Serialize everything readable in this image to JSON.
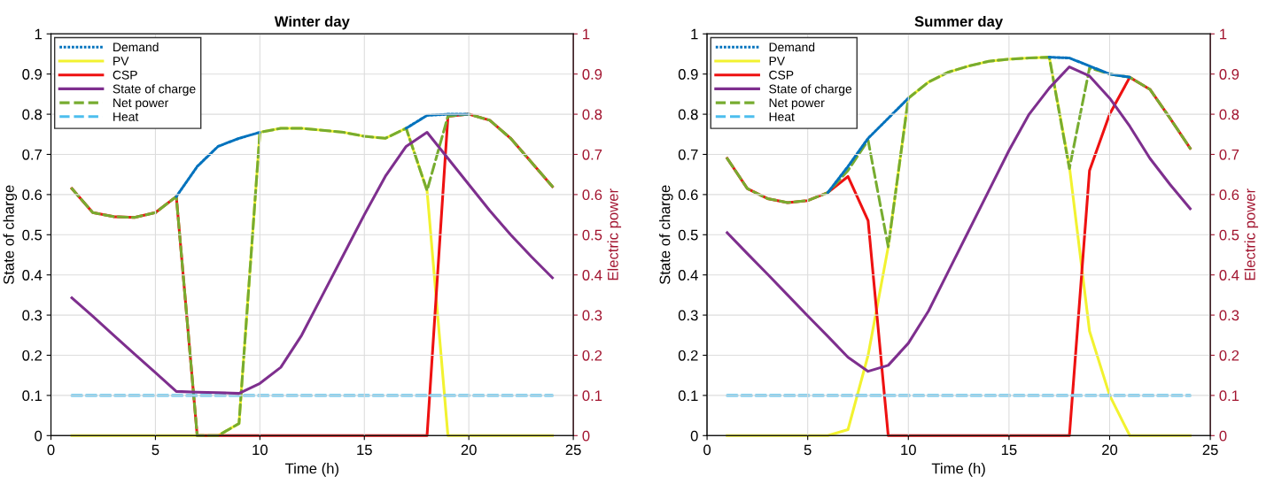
{
  "chart_data": [
    {
      "type": "line",
      "title": "Winter day",
      "xlabel": "Time (h)",
      "ylabel": "State of charge",
      "y2label": "Electric power",
      "x": [
        1,
        2,
        3,
        4,
        5,
        6,
        7,
        8,
        9,
        10,
        11,
        12,
        13,
        14,
        15,
        16,
        17,
        18,
        19,
        20,
        21,
        22,
        23,
        24
      ],
      "xlim": [
        0,
        25
      ],
      "xticks": [
        0,
        5,
        10,
        15,
        20,
        25
      ],
      "ylim": [
        0,
        1
      ],
      "yticks": [
        0,
        0.1,
        0.2,
        0.3,
        0.4,
        0.5,
        0.6,
        0.7,
        0.8,
        0.9,
        1
      ],
      "y2lim": [
        0,
        1
      ],
      "y2ticks": [
        0,
        0.1,
        0.2,
        0.3,
        0.4,
        0.5,
        0.6,
        0.7,
        0.8,
        0.9,
        1
      ],
      "grid": true,
      "legend": "top left",
      "series": [
        {
          "name": "Demand",
          "color": "#0072bd",
          "line_style": "dotted",
          "axis": "y2",
          "values": [
            null,
            null,
            null,
            null,
            null,
            0.595,
            0.67,
            0.72,
            0.74,
            0.755,
            null,
            null,
            null,
            null,
            null,
            null,
            0.765,
            0.797,
            0.8,
            0.8,
            null,
            null,
            null,
            null
          ]
        },
        {
          "name": "PV",
          "color": "#f2f230",
          "line_style": "solid",
          "axis": "y2",
          "values": [
            0,
            0,
            0,
            0,
            0,
            0,
            0,
            0,
            0.03,
            0.755,
            0.765,
            0.765,
            0.76,
            0.755,
            0.745,
            0.74,
            0.765,
            0.61,
            0,
            0,
            0,
            0,
            0,
            0
          ]
        },
        {
          "name": "CSP",
          "color": "#ee1111",
          "line_style": "solid",
          "axis": "y2",
          "values": [
            0.615,
            0.555,
            0.545,
            0.543,
            0.555,
            0.595,
            0,
            0,
            0,
            0,
            0,
            0,
            0,
            0,
            0,
            0,
            0,
            0,
            0.795,
            0.8,
            0.785,
            0.74,
            0.68,
            0.62
          ]
        },
        {
          "name": "State of charge",
          "color": "#7e2f8e",
          "line_style": "solid",
          "values": [
            0.343,
            0.297,
            0.25,
            0.203,
            0.157,
            0.11,
            0.108,
            0.107,
            0.105,
            0.13,
            0.17,
            0.25,
            0.35,
            0.45,
            0.55,
            0.645,
            0.72,
            0.755,
            0.69,
            0.625,
            0.56,
            0.5,
            0.445,
            0.393
          ]
        },
        {
          "name": "Net power",
          "color": "#77ac30",
          "line_style": "dashed",
          "axis": "y2",
          "values": [
            0.615,
            0.555,
            0.545,
            0.543,
            0.555,
            0.595,
            0,
            0,
            0.03,
            0.755,
            0.765,
            0.765,
            0.76,
            0.755,
            0.745,
            0.74,
            0.765,
            0.61,
            0.795,
            0.8,
            0.785,
            0.74,
            0.68,
            0.62
          ]
        },
        {
          "name": "Heat",
          "color": "#4dbeee",
          "line_style": "dashed",
          "axis": "y2",
          "values": [
            0.1,
            0.1,
            0.1,
            0.1,
            0.1,
            0.1,
            0.1,
            0.1,
            0.1,
            0.1,
            0.1,
            0.1,
            0.1,
            0.1,
            0.1,
            0.1,
            0.1,
            0.1,
            0.1,
            0.1,
            0.1,
            0.1,
            0.1,
            0.1
          ]
        }
      ]
    },
    {
      "type": "line",
      "title": "Summer day",
      "xlabel": "Time (h)",
      "ylabel": "State of charge",
      "y2label": "Electric power",
      "x": [
        1,
        2,
        3,
        4,
        5,
        6,
        7,
        8,
        9,
        10,
        11,
        12,
        13,
        14,
        15,
        16,
        17,
        18,
        19,
        20,
        21,
        22,
        23,
        24
      ],
      "xlim": [
        0,
        25
      ],
      "xticks": [
        0,
        5,
        10,
        15,
        20,
        25
      ],
      "ylim": [
        0,
        1
      ],
      "yticks": [
        0,
        0.1,
        0.2,
        0.3,
        0.4,
        0.5,
        0.6,
        0.7,
        0.8,
        0.9,
        1
      ],
      "y2lim": [
        0,
        1
      ],
      "y2ticks": [
        0,
        0.1,
        0.2,
        0.3,
        0.4,
        0.5,
        0.6,
        0.7,
        0.8,
        0.9,
        1
      ],
      "grid": true,
      "legend": "top left",
      "series": [
        {
          "name": "Demand",
          "color": "#0072bd",
          "line_style": "dotted",
          "axis": "y2",
          "values": [
            null,
            null,
            null,
            null,
            null,
            0.605,
            0.67,
            0.74,
            0.79,
            0.84,
            null,
            null,
            null,
            null,
            null,
            null,
            0.942,
            0.94,
            0.92,
            0.9,
            0.892,
            null,
            null,
            null
          ]
        },
        {
          "name": "PV",
          "color": "#f2f230",
          "line_style": "solid",
          "axis": "y2",
          "values": [
            0,
            0,
            0,
            0,
            0,
            0,
            0.015,
            0.2,
            0.47,
            0.84,
            0.88,
            0.905,
            0.92,
            0.932,
            0.937,
            0.94,
            0.942,
            0.67,
            0.26,
            0.1,
            0,
            0,
            0,
            0
          ]
        },
        {
          "name": "CSP",
          "color": "#ee1111",
          "line_style": "solid",
          "axis": "y2",
          "values": [
            0.69,
            0.615,
            0.59,
            0.58,
            0.585,
            0.605,
            0.645,
            0.535,
            0,
            0,
            0,
            0,
            0,
            0,
            0,
            0,
            0,
            0,
            0.66,
            0.8,
            0.892,
            0.862,
            0.79,
            0.715
          ]
        },
        {
          "name": "State of charge",
          "color": "#7e2f8e",
          "line_style": "solid",
          "values": [
            0.505,
            0.453,
            0.402,
            0.35,
            0.298,
            0.247,
            0.195,
            0.16,
            0.175,
            0.23,
            0.31,
            0.41,
            0.51,
            0.61,
            0.71,
            0.8,
            0.865,
            0.918,
            0.895,
            0.84,
            0.77,
            0.69,
            0.625,
            0.565
          ]
        },
        {
          "name": "Net power",
          "color": "#77ac30",
          "line_style": "dashed",
          "axis": "y2",
          "values": [
            0.69,
            0.615,
            0.59,
            0.58,
            0.585,
            0.605,
            0.66,
            0.735,
            0.47,
            0.84,
            0.88,
            0.905,
            0.92,
            0.932,
            0.937,
            0.94,
            0.942,
            0.665,
            0.915,
            0.9,
            0.892,
            0.862,
            0.79,
            0.715
          ]
        },
        {
          "name": "Heat",
          "color": "#4dbeee",
          "line_style": "dashed",
          "axis": "y2",
          "values": [
            0.1,
            0.1,
            0.1,
            0.1,
            0.1,
            0.1,
            0.1,
            0.1,
            0.1,
            0.1,
            0.1,
            0.1,
            0.1,
            0.1,
            0.1,
            0.1,
            0.1,
            0.1,
            0.1,
            0.1,
            0.1,
            0.1,
            0.1,
            0.1
          ]
        }
      ]
    }
  ]
}
